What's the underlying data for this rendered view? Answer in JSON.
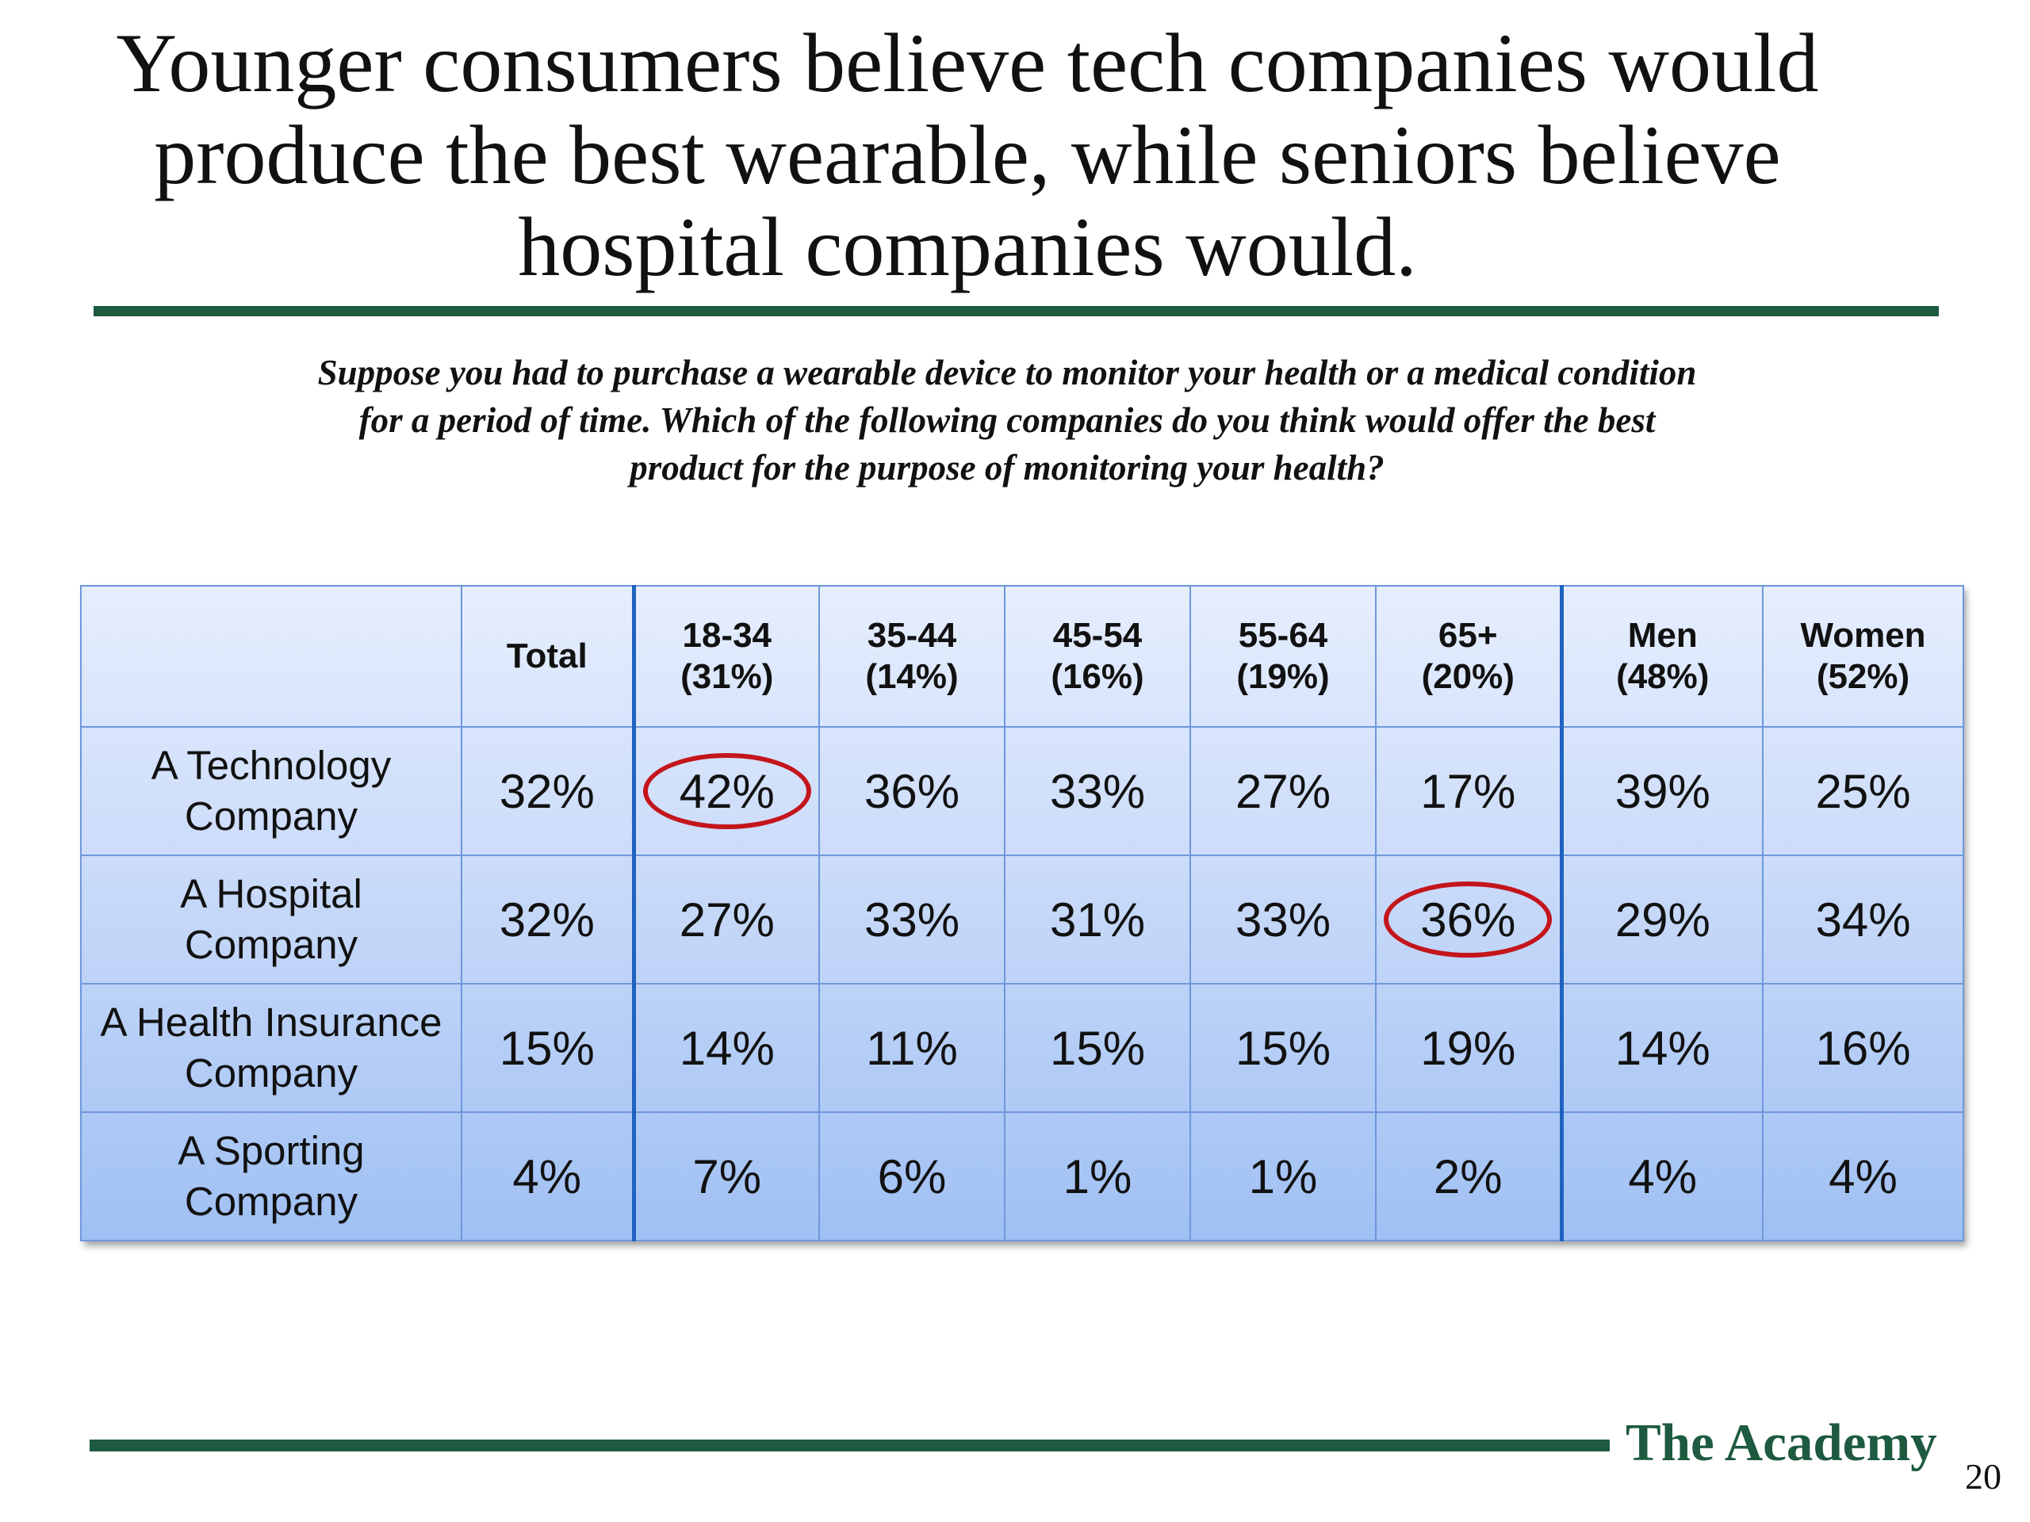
{
  "title_lines": [
    "Younger consumers believe tech companies would",
    "produce the best wearable, while seniors believe",
    "hospital companies would."
  ],
  "question_lines": [
    "Suppose you had to purchase a wearable device to monitor your health or a medical condition",
    "for a period of time. Which of the following companies do you think would offer the best",
    "product for the purpose of monitoring your health?"
  ],
  "brand": "The Academy",
  "page_number": "20",
  "colors": {
    "brand_green": "#1d5a3f",
    "highlight_circle": "#c4151c"
  },
  "chart_data": {
    "type": "table",
    "columns": [
      {
        "line1": "Total",
        "line2": ""
      },
      {
        "line1": "18-34",
        "line2": "(31%)"
      },
      {
        "line1": "35-44",
        "line2": "(14%)"
      },
      {
        "line1": "45-54",
        "line2": "(16%)"
      },
      {
        "line1": "55-64",
        "line2": "(19%)"
      },
      {
        "line1": "65+",
        "line2": "(20%)"
      },
      {
        "line1": "Men",
        "line2": "(48%)"
      },
      {
        "line1": "Women",
        "line2": "(52%)"
      }
    ],
    "rows": [
      {
        "label_lines": [
          "A Technology",
          "Company"
        ],
        "values": [
          "32%",
          "42%",
          "36%",
          "33%",
          "27%",
          "17%",
          "39%",
          "25%"
        ]
      },
      {
        "label_lines": [
          "A Hospital",
          "Company"
        ],
        "values": [
          "32%",
          "27%",
          "33%",
          "31%",
          "33%",
          "36%",
          "29%",
          "34%"
        ]
      },
      {
        "label_lines": [
          "A Health Insurance",
          "Company"
        ],
        "values": [
          "15%",
          "14%",
          "11%",
          "15%",
          "15%",
          "19%",
          "14%",
          "16%"
        ]
      },
      {
        "label_lines": [
          "A Sporting",
          "Company"
        ],
        "values": [
          "4%",
          "7%",
          "6%",
          "1%",
          "1%",
          "2%",
          "4%",
          "4%"
        ]
      }
    ],
    "highlighted_cells": [
      {
        "row": 0,
        "col": 1
      },
      {
        "row": 1,
        "col": 5
      }
    ]
  }
}
